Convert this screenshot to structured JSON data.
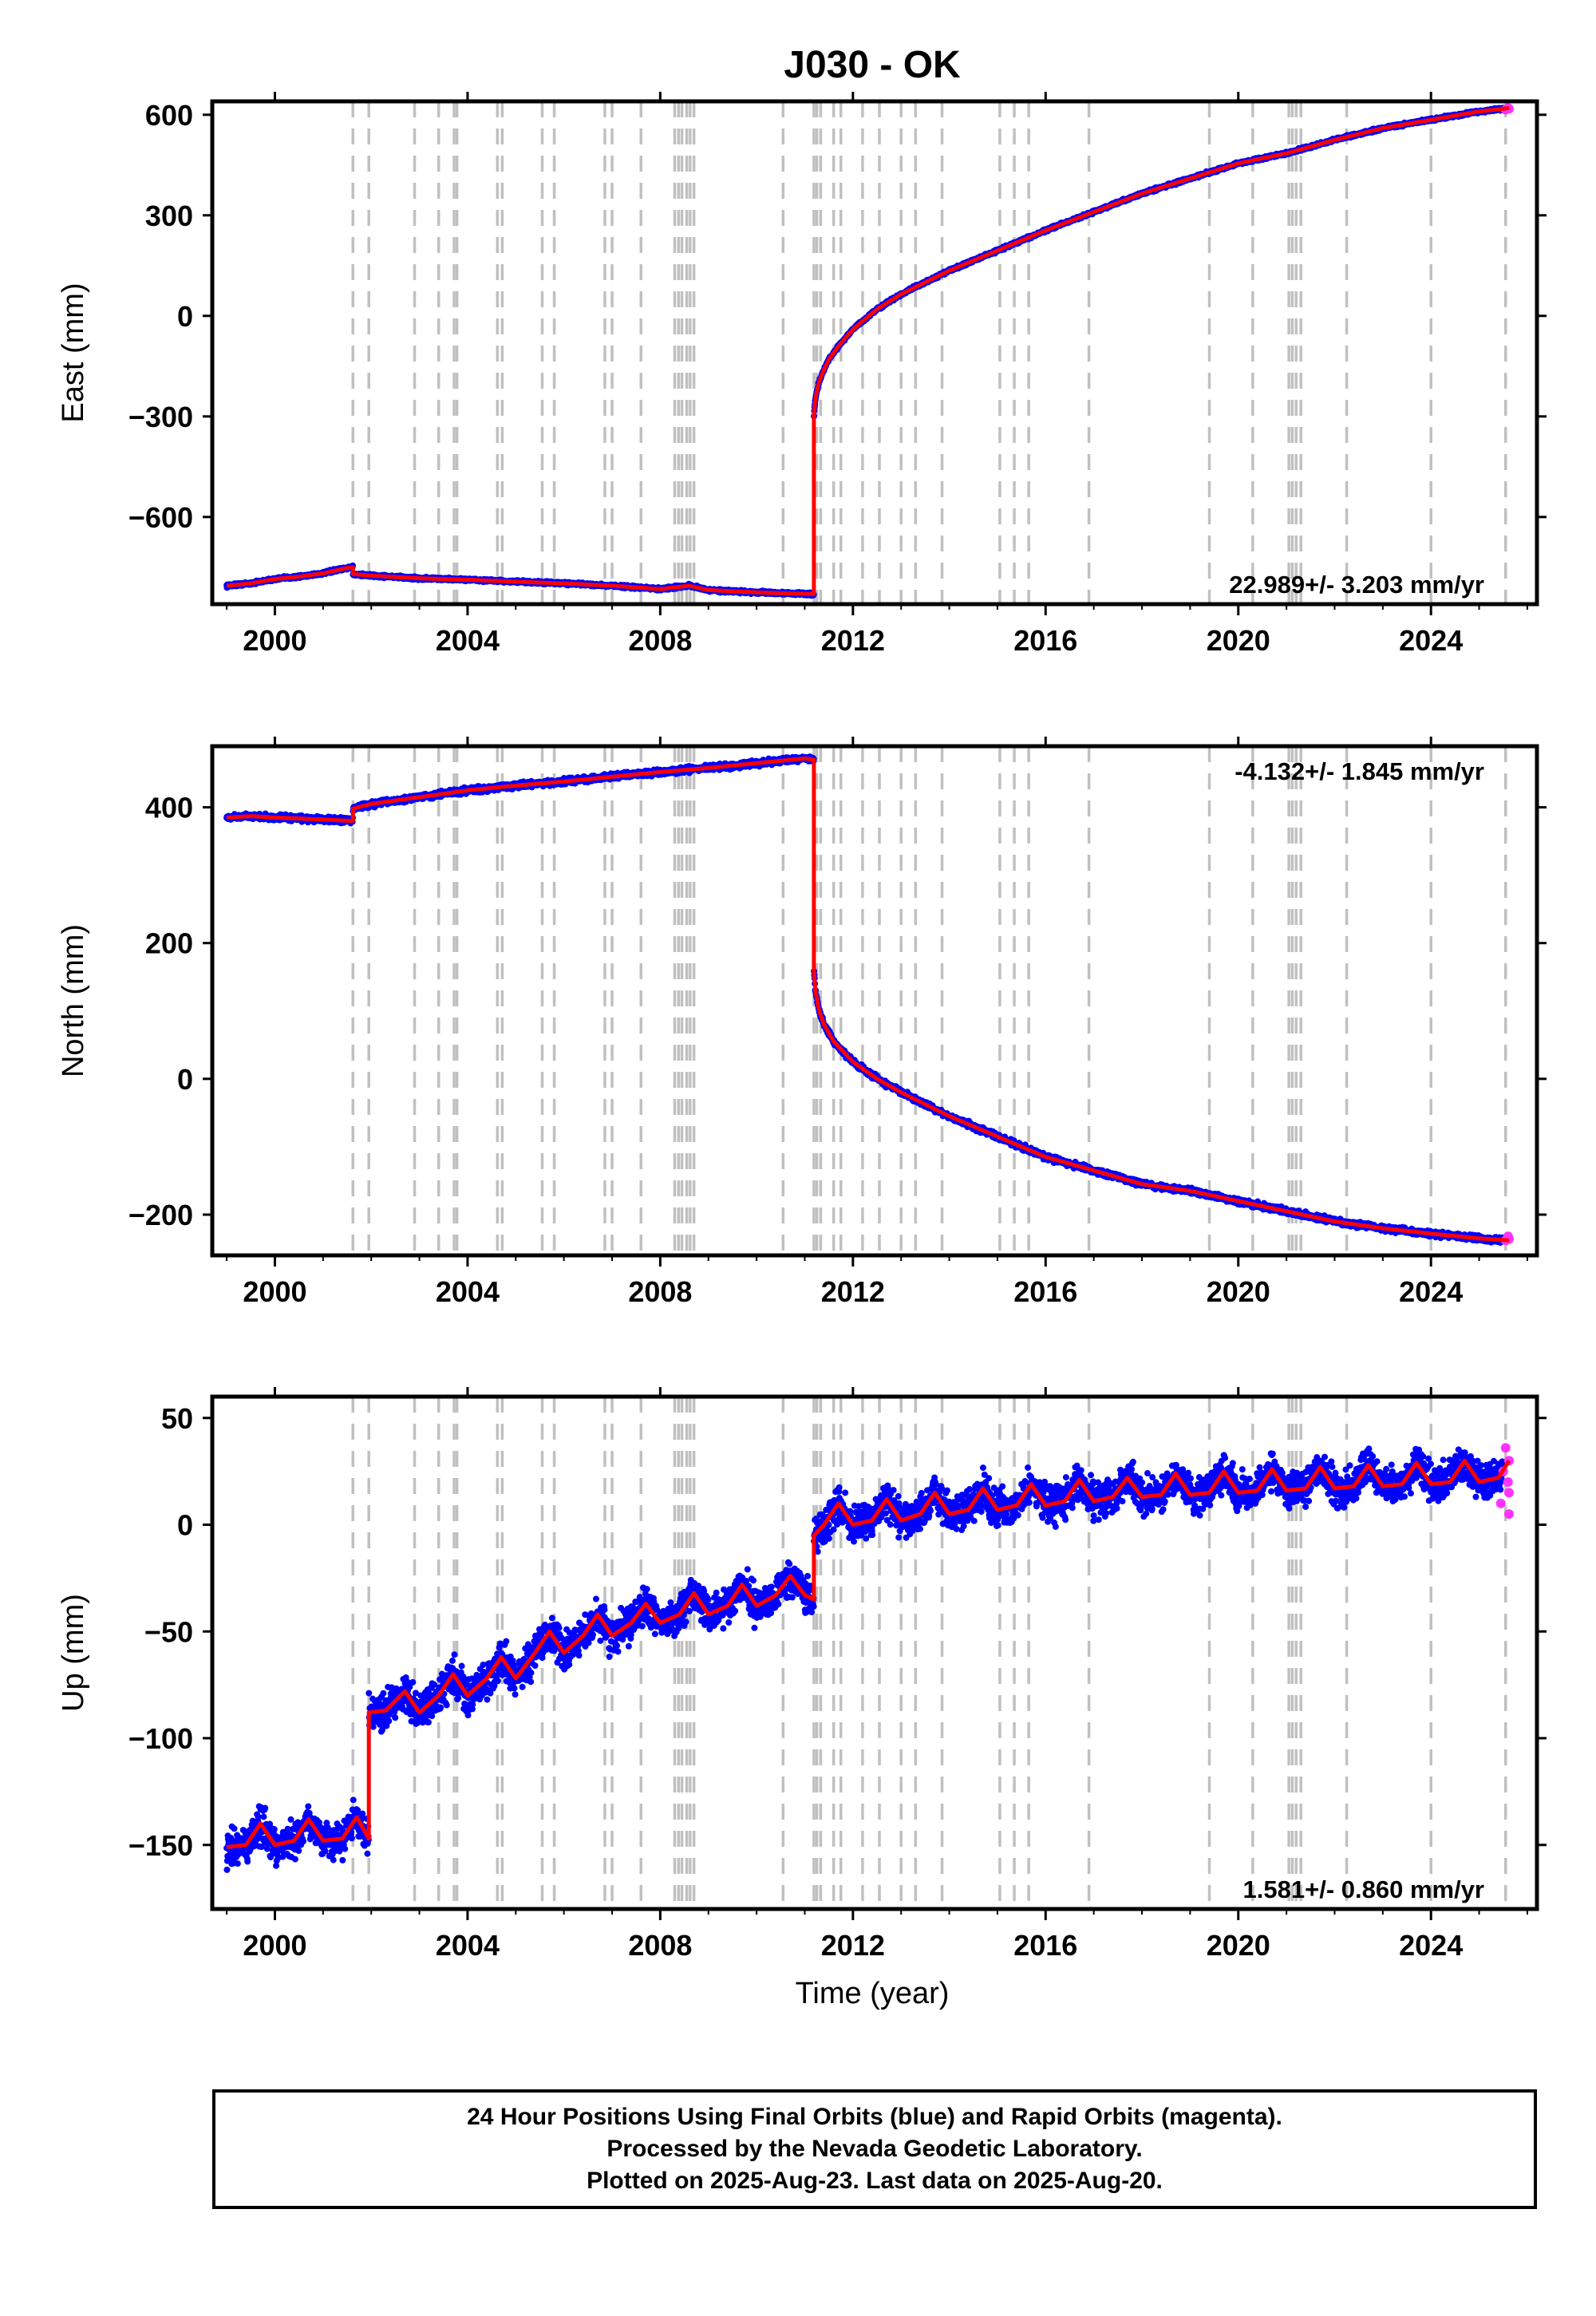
{
  "title": "J030 - OK",
  "xlabel": "Time (year)",
  "x_ticks": [
    2000,
    2004,
    2008,
    2012,
    2016,
    2020,
    2024
  ],
  "colors": {
    "final": "#0000ff",
    "rapid": "#ff33ff",
    "model": "#ff0000",
    "event_lines": "#c0c0c0"
  },
  "chart_data": [
    {
      "type": "scatter",
      "component": "east",
      "ylabel": "East (mm)",
      "ylim": [
        -860,
        640
      ],
      "xlim": [
        1998.7,
        2026.2
      ],
      "y_ticks": [
        -600,
        -300,
        0,
        300,
        600
      ],
      "rate": "22.989+/- 3.203 mm/yr",
      "rate_position": "bottom-right",
      "series": [
        {
          "kind": "model",
          "x": [
            1999.0,
            1999.5,
            2000.0,
            2000.5,
            2001.0,
            2001.5,
            2001.62,
            2001.62,
            2002.0,
            2003.0,
            2004.0,
            2005.0,
            2006.0,
            2007.0,
            2008.0,
            2008.6,
            2009.0,
            2010.0,
            2011.19,
            2011.19,
            2011.21,
            2011.25,
            2011.3,
            2011.4,
            2011.5,
            2011.7,
            2012.0,
            2012.5,
            2013.0,
            2014.0,
            2015.0,
            2016.0,
            2017.0,
            2018.0,
            2019.0,
            2020.0,
            2021.0,
            2022.0,
            2023.0,
            2024.0,
            2025.0,
            2025.62
          ],
          "y": [
            -805,
            -798,
            -785,
            -778,
            -768,
            -752,
            -750,
            -770,
            -775,
            -783,
            -787,
            -793,
            -798,
            -805,
            -815,
            -805,
            -818,
            -825,
            -830,
            -300,
            -260,
            -225,
            -195,
            -160,
            -130,
            -90,
            -40,
            20,
            65,
            135,
            195,
            255,
            310,
            365,
            410,
            455,
            485,
            525,
            560,
            585,
            610,
            620
          ]
        },
        {
          "kind": "rapid",
          "x": [
            2025.55,
            2025.6,
            2025.62
          ],
          "y": [
            615,
            620,
            618
          ]
        }
      ]
    },
    {
      "type": "scatter",
      "component": "north",
      "ylabel": "North (mm)",
      "ylim": [
        -260,
        490
      ],
      "xlim": [
        1998.7,
        2026.2
      ],
      "y_ticks": [
        -200,
        0,
        200,
        400
      ],
      "rate": "-4.132+/- 1.845 mm/yr",
      "rate_position": "top-right",
      "series": [
        {
          "kind": "model",
          "x": [
            1999.0,
            1999.5,
            2000.0,
            2001.0,
            2001.62,
            2001.62,
            2002.0,
            2003.0,
            2004.0,
            2005.0,
            2006.0,
            2007.0,
            2008.0,
            2009.0,
            2010.0,
            2011.0,
            2011.19,
            2011.19,
            2011.22,
            2011.3,
            2011.4,
            2011.6,
            2012.0,
            2012.5,
            2013.0,
            2014.0,
            2015.0,
            2016.0,
            2017.0,
            2018.0,
            2019.0,
            2020.0,
            2021.0,
            2022.0,
            2023.0,
            2024.0,
            2025.0,
            2025.62
          ],
          "y": [
            385,
            387,
            385,
            382,
            380,
            398,
            405,
            415,
            425,
            432,
            438,
            445,
            452,
            458,
            465,
            472,
            470,
            160,
            130,
            100,
            80,
            55,
            25,
            0,
            -20,
            -55,
            -85,
            -115,
            -135,
            -155,
            -165,
            -180,
            -195,
            -210,
            -220,
            -228,
            -235,
            -238
          ]
        },
        {
          "kind": "rapid",
          "x": [
            2025.55,
            2025.6,
            2025.62
          ],
          "y": [
            -238,
            -232,
            -236
          ]
        }
      ]
    },
    {
      "type": "scatter",
      "component": "up",
      "ylabel": "Up (mm)",
      "ylim": [
        -180,
        60
      ],
      "xlim": [
        1998.7,
        2026.2
      ],
      "y_ticks": [
        -150,
        -100,
        -50,
        0,
        50
      ],
      "rate": "1.581+/- 0.860 mm/yr",
      "rate_position": "bottom-right",
      "series": [
        {
          "kind": "model",
          "x": [
            1999.0,
            1999.4,
            1999.7,
            2000.0,
            2000.4,
            2000.7,
            2001.0,
            2001.4,
            2001.7,
            2001.95,
            2001.95,
            2002.3,
            2002.7,
            2003.0,
            2003.4,
            2003.7,
            2004.0,
            2004.4,
            2004.7,
            2005.0,
            2005.4,
            2005.7,
            2006.0,
            2006.4,
            2006.7,
            2007.0,
            2007.4,
            2007.7,
            2008.0,
            2008.4,
            2008.7,
            2009.0,
            2009.4,
            2009.7,
            2010.0,
            2010.4,
            2010.7,
            2011.0,
            2011.19,
            2011.19,
            2011.4,
            2011.7,
            2012.0,
            2012.4,
            2012.7,
            2013.0,
            2013.4,
            2013.7,
            2014.0,
            2014.4,
            2014.7,
            2015.0,
            2015.4,
            2015.7,
            2016.0,
            2016.4,
            2016.7,
            2017.0,
            2017.4,
            2017.7,
            2018.0,
            2018.4,
            2018.7,
            2019.0,
            2019.4,
            2019.7,
            2020.0,
            2020.4,
            2020.7,
            2021.0,
            2021.4,
            2021.7,
            2022.0,
            2022.4,
            2022.7,
            2023.0,
            2023.4,
            2023.7,
            2024.0,
            2024.4,
            2024.7,
            2025.0,
            2025.4,
            2025.62
          ],
          "y": [
            -151,
            -150,
            -140,
            -150,
            -148,
            -138,
            -148,
            -147,
            -137,
            -147,
            -88,
            -87,
            -78,
            -88,
            -80,
            -70,
            -80,
            -72,
            -62,
            -72,
            -60,
            -50,
            -60,
            -52,
            -42,
            -52,
            -46,
            -37,
            -46,
            -42,
            -32,
            -42,
            -38,
            -28,
            -38,
            -33,
            -24,
            -33,
            -35,
            -5,
            0,
            10,
            0,
            2,
            12,
            2,
            5,
            15,
            5,
            7,
            17,
            7,
            9,
            19,
            9,
            11,
            21,
            11,
            13,
            22,
            13,
            14,
            24,
            14,
            15,
            25,
            15,
            16,
            26,
            16,
            17,
            27,
            17,
            18,
            28,
            18,
            19,
            29,
            19,
            20,
            30,
            20,
            22,
            30
          ]
        },
        {
          "kind": "rapid",
          "x": [
            2025.45,
            2025.5,
            2025.55,
            2025.6,
            2025.62,
            2025.62,
            2025.62
          ],
          "y": [
            10,
            25,
            36,
            20,
            15,
            5,
            30
          ]
        }
      ]
    }
  ],
  "event_lines": [
    2001.62,
    2001.95,
    2002.9,
    2003.4,
    2003.72,
    2003.78,
    2004.62,
    2004.72,
    2005.55,
    2005.8,
    2006.85,
    2007.0,
    2007.6,
    2008.3,
    2008.38,
    2008.45,
    2008.55,
    2008.62,
    2008.7,
    2010.55,
    2011.19,
    2011.25,
    2011.33,
    2011.6,
    2011.75,
    2012.2,
    2012.55,
    2013.0,
    2013.3,
    2013.85,
    2015.05,
    2015.35,
    2015.65,
    2016.9,
    2019.4,
    2020.3,
    2021.05,
    2021.12,
    2021.2,
    2021.3,
    2022.25,
    2024.0,
    2025.55
  ],
  "footer": {
    "line1": "24 Hour Positions Using Final Orbits (blue) and Rapid Orbits (magenta).",
    "line2": "Processed by the Nevada Geodetic Laboratory.",
    "line3": "Plotted on 2025-Aug-23. Last data on 2025-Aug-20."
  }
}
